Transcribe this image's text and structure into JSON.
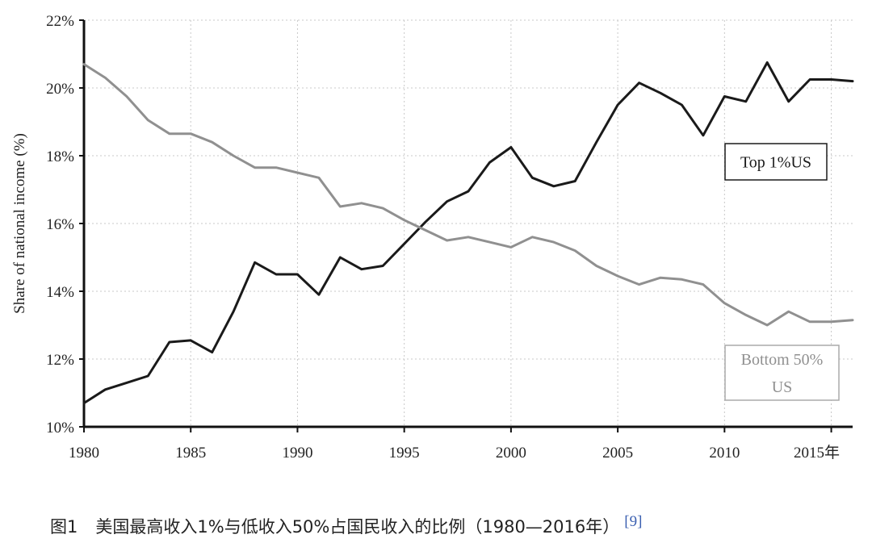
{
  "caption": {
    "label": "图1",
    "text": "美国最高收入1%与低收入50%占国民收入的比例（1980—2016年）",
    "ref": "[9]"
  },
  "chart_data": {
    "type": "line",
    "ylabel": "Share of national income (%)",
    "x_unit_label": "年",
    "xlim": [
      1980,
      2016
    ],
    "ylim": [
      10,
      22
    ],
    "x_ticks": [
      1980,
      1985,
      1990,
      1995,
      2000,
      2005,
      2010,
      2015
    ],
    "x_tick_labels": [
      "1980",
      "1985",
      "1990",
      "1995",
      "2000",
      "2005",
      "2010",
      "2015年"
    ],
    "y_ticks": [
      10,
      12,
      14,
      16,
      18,
      20,
      22
    ],
    "y_tick_labels": [
      "10%",
      "12%",
      "14%",
      "16%",
      "18%",
      "20%",
      "22%"
    ],
    "grid": true,
    "x": [
      1980,
      1981,
      1982,
      1983,
      1984,
      1985,
      1986,
      1987,
      1988,
      1989,
      1990,
      1991,
      1992,
      1993,
      1994,
      1995,
      1996,
      1997,
      1998,
      1999,
      2000,
      2001,
      2002,
      2003,
      2004,
      2005,
      2006,
      2007,
      2008,
      2009,
      2010,
      2011,
      2012,
      2013,
      2014,
      2015,
      2016
    ],
    "series": [
      {
        "name": "Top 1%US",
        "color": "#1a1a1a",
        "values": [
          10.7,
          11.1,
          11.3,
          11.5,
          12.5,
          12.55,
          12.2,
          13.4,
          14.85,
          14.5,
          14.5,
          13.9,
          15.0,
          14.65,
          14.75,
          15.4,
          16.05,
          16.65,
          16.95,
          17.8,
          18.25,
          17.35,
          17.1,
          17.25,
          18.4,
          19.5,
          20.15,
          19.85,
          19.5,
          18.6,
          19.75,
          19.6,
          20.75,
          19.6,
          20.25,
          20.25,
          20.2
        ]
      },
      {
        "name": "Bottom 50% US",
        "color": "#909090",
        "values": [
          20.7,
          20.3,
          19.75,
          19.05,
          18.65,
          18.65,
          18.4,
          18.0,
          17.65,
          17.65,
          17.5,
          17.35,
          16.5,
          16.6,
          16.45,
          16.1,
          15.8,
          15.5,
          15.6,
          15.45,
          15.3,
          15.6,
          15.45,
          15.2,
          14.75,
          14.45,
          14.2,
          14.4,
          14.35,
          14.2,
          13.65,
          13.3,
          13.0,
          13.4,
          13.1,
          13.1,
          13.15
        ]
      }
    ],
    "legend": [
      {
        "series": "Top 1%US",
        "lines": [
          "Top 1%US"
        ],
        "position": "right-middle"
      },
      {
        "series": "Bottom 50% US",
        "lines": [
          "Bottom 50%",
          "US"
        ],
        "position": "bottom-right"
      }
    ]
  }
}
